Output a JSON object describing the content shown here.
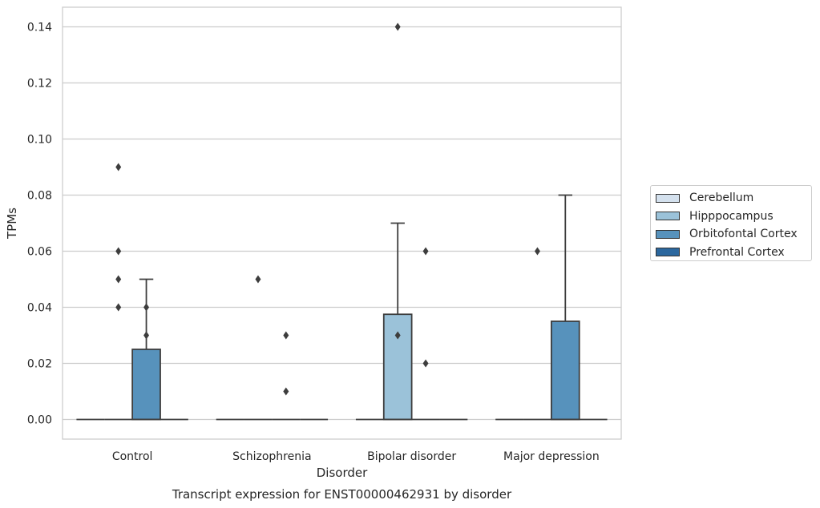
{
  "chart_data": {
    "type": "boxplot",
    "title": "Transcript expression for ENST00000462931 by disorder",
    "xlabel": "Disorder",
    "ylabel": "TPMs",
    "ylim": [
      -0.007,
      0.147
    ],
    "yticks": [
      0.0,
      0.02,
      0.04,
      0.06,
      0.08,
      0.1,
      0.12,
      0.14
    ],
    "ytick_labels": [
      "0.00",
      "0.02",
      "0.04",
      "0.06",
      "0.08",
      "0.10",
      "0.12",
      "0.14"
    ],
    "grid": "horizontal",
    "legend_position": "right",
    "categories": [
      "Control",
      "Schizophrenia",
      "Bipolar disorder",
      "Major depression"
    ],
    "series": [
      {
        "name": "Cerebellum",
        "color": "#d4e1ee",
        "boxes": [
          {
            "q1": 0,
            "median": 0,
            "q3": 0,
            "whislo": 0,
            "whishi": 0,
            "fliers": []
          },
          {
            "q1": 0,
            "median": 0,
            "q3": 0,
            "whislo": 0,
            "whishi": 0,
            "fliers": []
          },
          {
            "q1": 0,
            "median": 0,
            "q3": 0,
            "whislo": 0,
            "whishi": 0,
            "fliers": []
          },
          {
            "q1": 0,
            "median": 0,
            "q3": 0,
            "whislo": 0,
            "whishi": 0,
            "fliers": []
          }
        ]
      },
      {
        "name": "Hipppocampus",
        "color": "#9bc2d9",
        "boxes": [
          {
            "q1": 0,
            "median": 0,
            "q3": 0,
            "whislo": 0,
            "whishi": 0,
            "fliers": [
              0.04,
              0.05,
              0.06,
              0.09
            ]
          },
          {
            "q1": 0,
            "median": 0,
            "q3": 0,
            "whislo": 0,
            "whishi": 0,
            "fliers": [
              0.05
            ]
          },
          {
            "q1": 0,
            "median": 0,
            "q3": 0.0375,
            "whislo": 0,
            "whishi": 0.07,
            "fliers": [
              0.03,
              0.14
            ]
          },
          {
            "q1": 0,
            "median": 0,
            "q3": 0,
            "whislo": 0,
            "whishi": 0,
            "fliers": [
              0.06
            ]
          }
        ]
      },
      {
        "name": "Orbitofontal Cortex",
        "color": "#5792bc",
        "boxes": [
          {
            "q1": 0,
            "median": 0,
            "q3": 0.025,
            "whislo": 0,
            "whishi": 0.05,
            "fliers": [
              0.03,
              0.04
            ]
          },
          {
            "q1": 0,
            "median": 0,
            "q3": 0,
            "whislo": 0,
            "whishi": 0,
            "fliers": [
              0.01,
              0.03
            ]
          },
          {
            "q1": 0,
            "median": 0,
            "q3": 0,
            "whislo": 0,
            "whishi": 0,
            "fliers": [
              0.02,
              0.06
            ]
          },
          {
            "q1": 0,
            "median": 0,
            "q3": 0.035,
            "whislo": 0,
            "whishi": 0.08,
            "fliers": []
          }
        ]
      },
      {
        "name": "Prefrontal Cortex",
        "color": "#2b679e",
        "boxes": [
          {
            "q1": 0,
            "median": 0,
            "q3": 0,
            "whislo": 0,
            "whishi": 0,
            "fliers": []
          },
          {
            "q1": 0,
            "median": 0,
            "q3": 0,
            "whislo": 0,
            "whishi": 0,
            "fliers": []
          },
          {
            "q1": 0,
            "median": 0,
            "q3": 0,
            "whislo": 0,
            "whishi": 0,
            "fliers": []
          },
          {
            "q1": 0,
            "median": 0,
            "q3": 0,
            "whislo": 0,
            "whishi": 0,
            "fliers": []
          }
        ]
      }
    ]
  },
  "legend": {
    "items": [
      {
        "label": "Cerebellum",
        "color": "#d4e1ee"
      },
      {
        "label": "Hipppocampus",
        "color": "#9bc2d9"
      },
      {
        "label": "Orbitofontal Cortex",
        "color": "#5792bc"
      },
      {
        "label": "Prefrontal Cortex",
        "color": "#2b679e"
      }
    ]
  }
}
